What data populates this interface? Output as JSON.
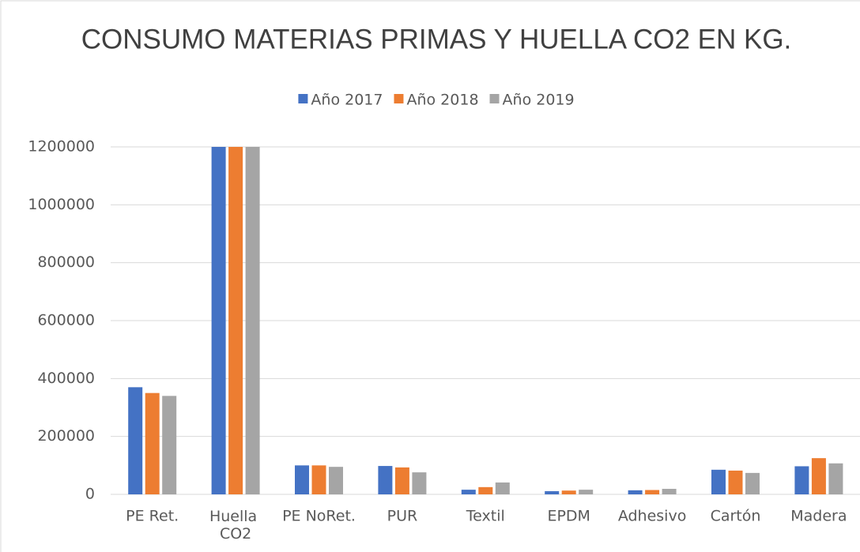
{
  "chart_data": {
    "type": "bar",
    "title": "CONSUMO MATERIAS PRIMAS Y HUELLA CO2 EN KG.",
    "categories": [
      "PE Ret.",
      "Huella CO2",
      "PE NoRet.",
      "PUR",
      "Textil",
      "EPDM",
      "Adhesivo",
      "Cartón",
      "Madera"
    ],
    "series": [
      {
        "name": "Año 2017",
        "color": "#4472c4",
        "values": [
          370000,
          1200000,
          100000,
          98000,
          16000,
          11000,
          14000,
          85000,
          97000
        ]
      },
      {
        "name": "Año 2018",
        "color": "#ed7d31",
        "values": [
          350000,
          1200000,
          100000,
          93000,
          25000,
          13000,
          15000,
          82000,
          125000
        ]
      },
      {
        "name": "Año 2019",
        "color": "#a5a5a5",
        "values": [
          340000,
          1200000,
          95000,
          76000,
          41000,
          16000,
          19000,
          74000,
          107000
        ]
      }
    ],
    "ylim": [
      0,
      1200000
    ],
    "yticks": [
      0,
      200000,
      400000,
      600000,
      800000,
      1000000,
      1200000
    ],
    "grid": true,
    "legend": "top"
  }
}
